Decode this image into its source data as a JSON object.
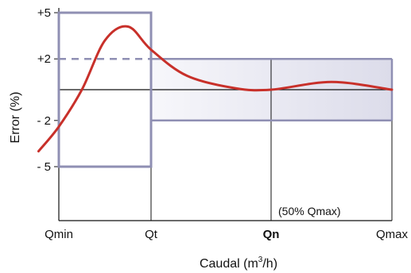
{
  "chart_data": {
    "type": "line",
    "title": "",
    "xlabel_main": "Caudal (m",
    "xlabel_sup": "3",
    "xlabel_end": "/h)",
    "ylabel": "Error (%)",
    "x_categories": [
      {
        "label": "Qmin",
        "bold": false
      },
      {
        "label": "Qt",
        "bold": false
      },
      {
        "label": "Qn",
        "bold": true
      },
      {
        "label": "Qmax",
        "bold": false
      }
    ],
    "y_ticks": [
      {
        "label": "+5",
        "value": 5
      },
      {
        "label": "+2",
        "value": 2
      },
      {
        "label": "- 2",
        "value": -2
      },
      {
        "label": "- 5",
        "value": -5
      }
    ],
    "ylim": [
      -6.2,
      6.2
    ],
    "error_limits": {
      "low_range": {
        "from": "Qmin",
        "to": "Qt",
        "upper": 5,
        "lower": -5
      },
      "high_range": {
        "from": "Qt",
        "to": "Qmax",
        "upper": 2,
        "lower": -2
      }
    },
    "annotation": "(50% Qmax)",
    "series": [
      {
        "color": "#c8302a",
        "points": [
          {
            "x": -0.22,
            "y": -4.0
          },
          {
            "x": 0.0,
            "y": -2.4
          },
          {
            "x": 0.25,
            "y": 0.0
          },
          {
            "x": 0.5,
            "y": 3.2
          },
          {
            "x": 0.75,
            "y": 4.1
          },
          {
            "x": 1.0,
            "y": 2.6
          },
          {
            "x": 1.3,
            "y": 0.9
          },
          {
            "x": 1.7,
            "y": 0.1
          },
          {
            "x": 2.0,
            "y": 0.0
          },
          {
            "x": 2.5,
            "y": 0.5
          },
          {
            "x": 3.0,
            "y": 0.0
          }
        ]
      }
    ],
    "colors": {
      "limit_box": "#8f8fb3",
      "shade_start": "#f7f7fb",
      "shade_end": "#dcdcea",
      "axis": "#111111"
    }
  }
}
